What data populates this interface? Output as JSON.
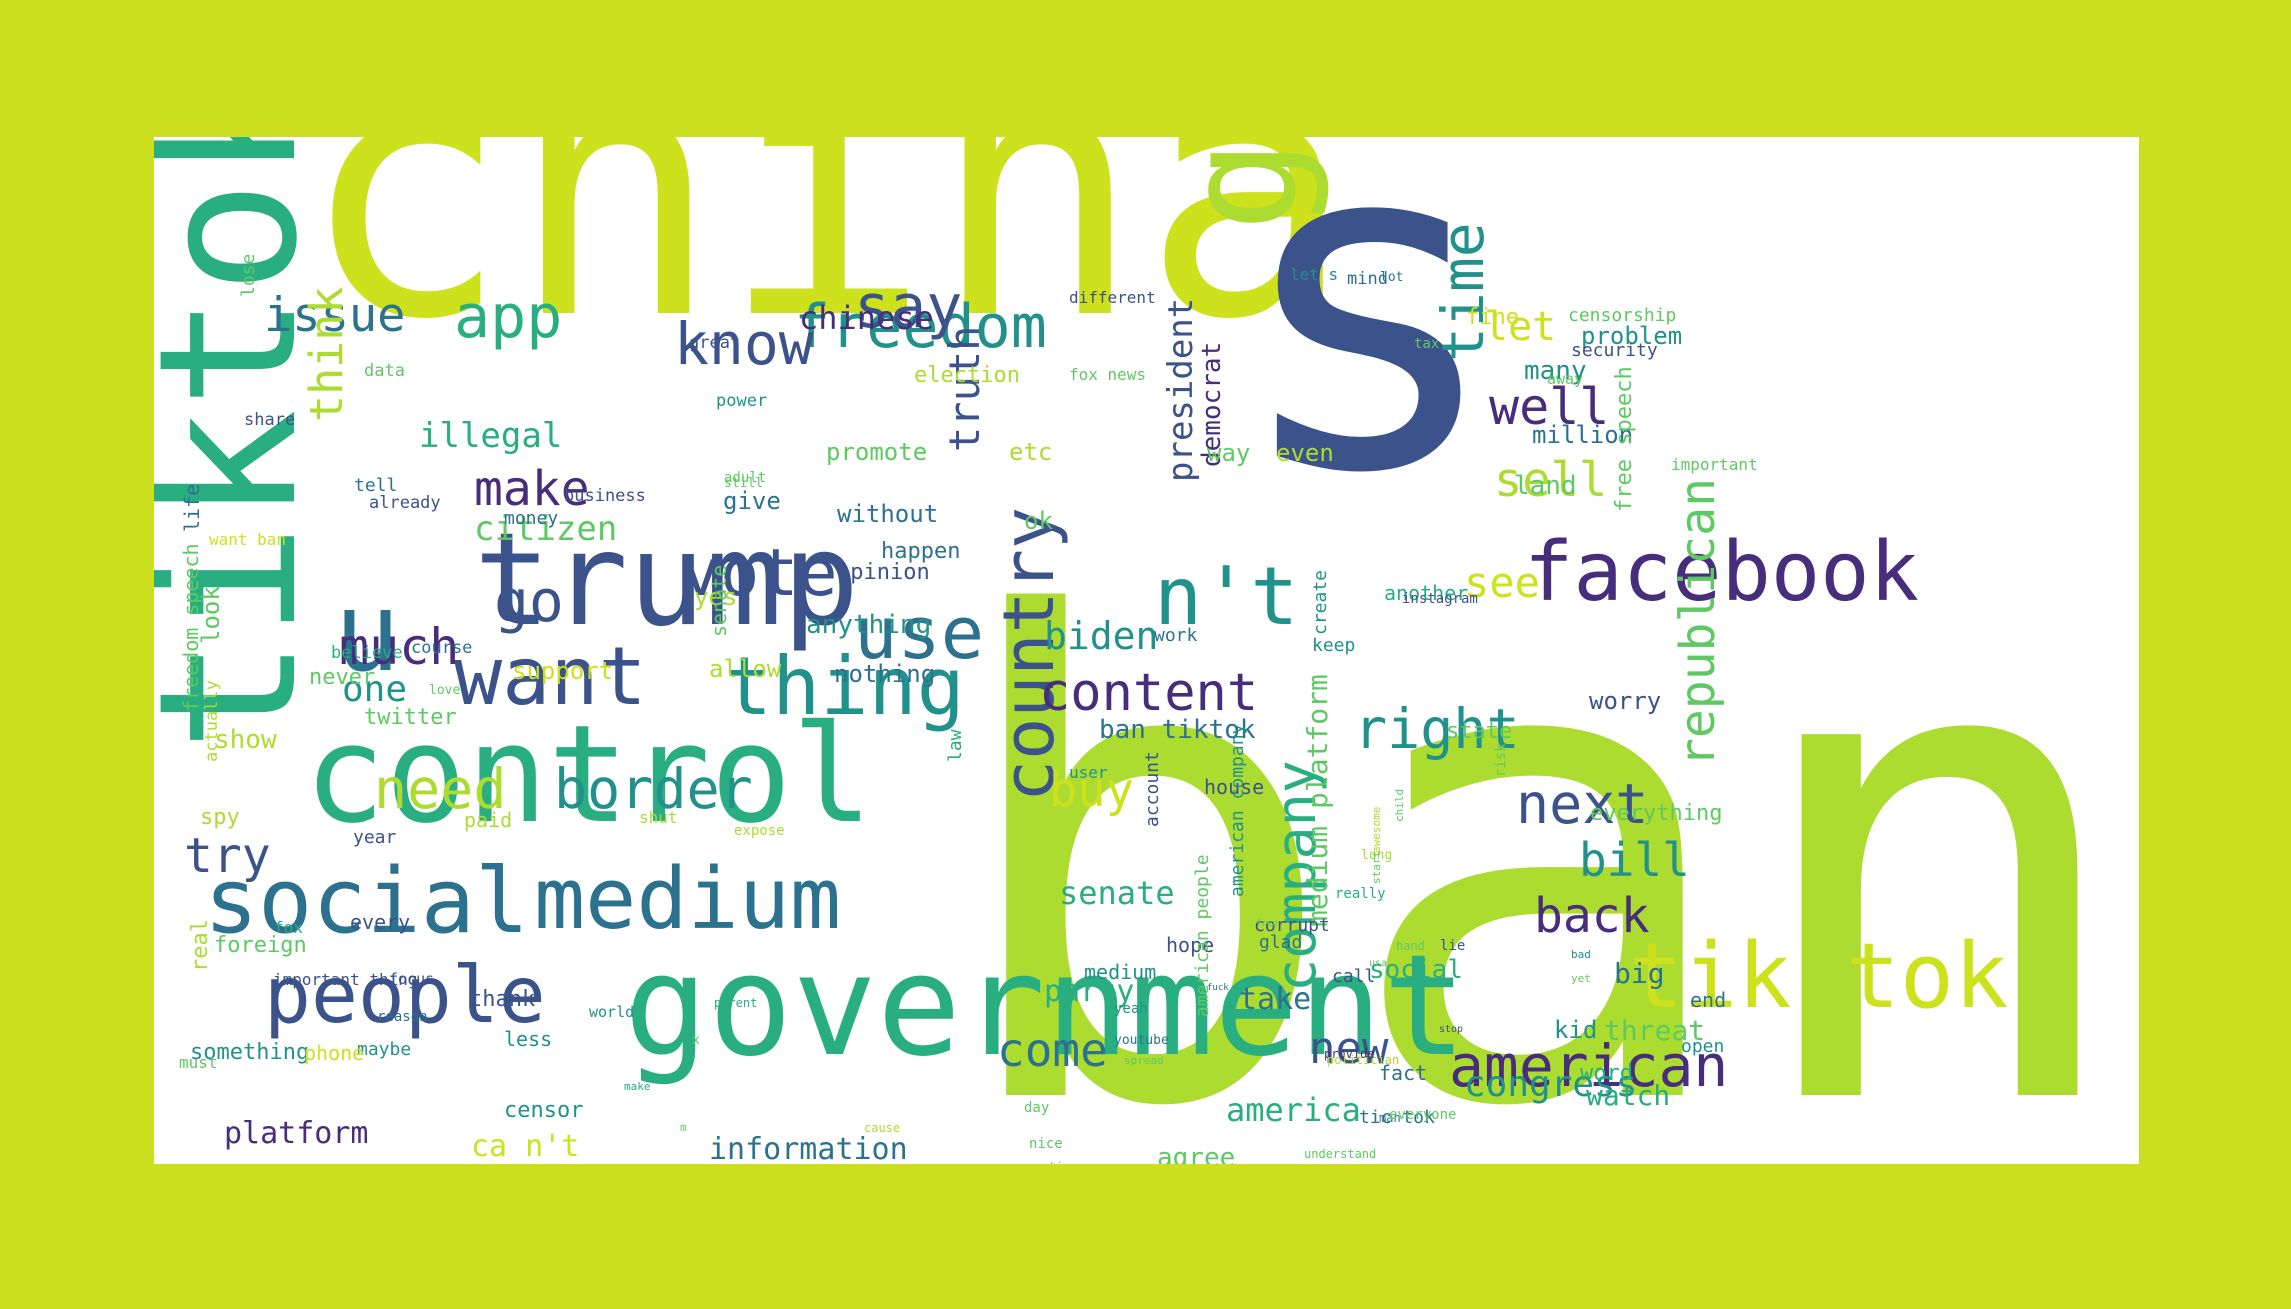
{
  "colors": {
    "page_background": "#cde020",
    "cloud_background": "#ffffff",
    "palette": [
      "#cde11d",
      "#addc30",
      "#5ec962",
      "#28ae80",
      "#21918c",
      "#2c728e",
      "#3b528b",
      "#472d7b",
      "#440154"
    ]
  },
  "cloud": {
    "words": [
      "ban",
      "china",
      "s",
      "tiktok",
      "control",
      "government",
      "trump",
      "good",
      "u",
      "tik tok",
      "social",
      "medium",
      "people",
      "facebook",
      "want",
      "thing",
      "country",
      "use",
      "vote",
      "freedom",
      "know",
      "say",
      "app",
      "n't",
      "time",
      "american",
      "company",
      "content",
      "border",
      "need",
      "go",
      "much",
      "right",
      "next",
      "try",
      "make",
      "issue",
      "think",
      "well",
      "sell",
      "let",
      "see",
      "buy",
      "come",
      "new",
      "bill",
      "back",
      "republican",
      "truth",
      "biden",
      "one",
      "citizen",
      "illegal",
      "chinese",
      "president",
      "congress",
      "information",
      "platform",
      "america",
      "senate",
      "party",
      "medium platform",
      "big",
      "threat",
      "watch",
      "ca n't",
      "agree",
      "take",
      "social",
      "ban tiktok",
      "many",
      "million",
      "land",
      "democrat",
      "free speech",
      "problem",
      "censorship",
      "security",
      "fine",
      "election",
      "fox news",
      "promote",
      "etc",
      "way",
      "even",
      "give",
      "without",
      "happen",
      "opinion",
      "ok",
      "anything",
      "yes",
      "look",
      "show",
      "support",
      "allow",
      "nothing",
      "spy",
      "never",
      "twitter",
      "foreign",
      "real",
      "something",
      "thank",
      "censor",
      "medium",
      "corrupt",
      "glad",
      "house",
      "worry",
      "everything",
      "state",
      "kid",
      "word",
      "open",
      "end",
      "tic tok",
      "fact",
      "call",
      "hope",
      "account",
      "american company",
      "american people",
      "freedom speech",
      "actually",
      "life",
      "want ban",
      "tell",
      "money",
      "business",
      "data",
      "already",
      "lose",
      "share",
      "believe",
      "course",
      "love",
      "great",
      "power",
      "adult",
      "still",
      "senate",
      "law",
      "user",
      "work",
      "create",
      "keep",
      "another",
      "instagram",
      "tax",
      "away",
      "important",
      "different",
      "let s",
      "mind",
      "lot",
      "must",
      "less",
      "maybe",
      "phone",
      "world",
      "reason",
      "focus",
      "fox",
      "important thing",
      "year",
      "every",
      "shut",
      "paid",
      "expose",
      "man",
      "everyone",
      "day",
      "nice",
      "continue",
      "yeah",
      "youtube",
      "understand",
      "provide",
      "politician",
      "really",
      "long",
      "hand",
      "lie",
      "bad",
      "yet",
      "usa",
      "stop",
      "spread",
      "free",
      "fuck",
      "risk",
      "child",
      "awesome",
      "start",
      "cause",
      "parent",
      "make",
      "x",
      "m"
    ]
  }
}
